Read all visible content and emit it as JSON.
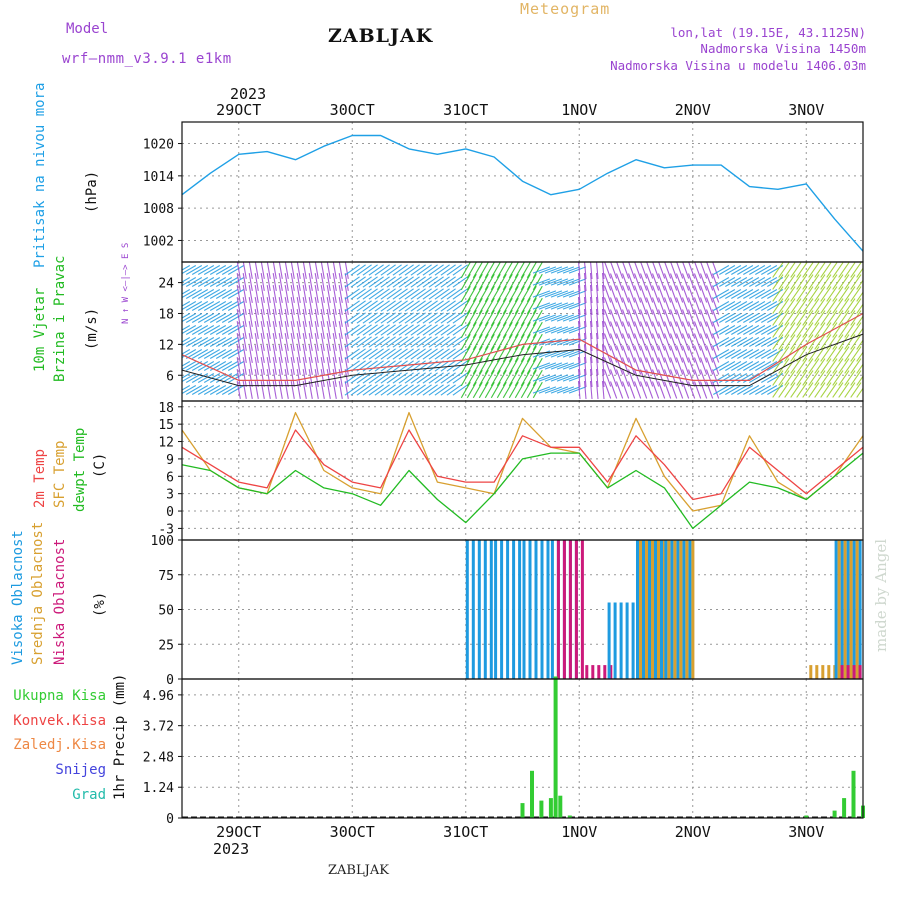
{
  "header": {
    "model_label": "Model",
    "model_name": "wrf—nmm_v3.9.1  e1km",
    "station": "ZABLJAK",
    "product": "Meteogram",
    "coords": "lon,lat (19.15E, 43.1125N)",
    "altitude": "Nadmorska Visina 1450m",
    "model_altitude": "Nadmorska Visina u modelu 1406.03m",
    "year": "2023",
    "credit": "made by Angel",
    "footer_station": "ZABLJAK"
  },
  "colors": {
    "pressure": "#1fa0e6",
    "temp2m": "#ee4444",
    "sfc": "#d8a030",
    "dewpt": "#22bb22",
    "high_cloud": "#1e9be0",
    "mid_cloud": "#d8a030",
    "low_cloud": "#cc1a7a",
    "total_precip": "#33cc33",
    "purple": "#9a44d0"
  },
  "time_axis": {
    "labels": [
      "29OCT",
      "30OCT",
      "31OCT",
      "1NOV",
      "2NOV",
      "3NOV"
    ],
    "start": "2023-10-28T12:00",
    "end": "2023-11-03T12:00"
  },
  "panels": {
    "pressure": {
      "label": "Pritisak na nivou mora",
      "unit": "(hPa)",
      "ticks": [
        "1020",
        "1014",
        "1008",
        "1002"
      ]
    },
    "wind": {
      "label1": "10m Vjetar",
      "label2": "Brzina i Pravac",
      "unit": "(m/s)",
      "ticks": [
        "24",
        "18",
        "12",
        "6"
      ],
      "compass": "N ↑  W <—|—> E  S"
    },
    "temp": {
      "label_temp": "2m Temp",
      "label_sfc": "SFC Temp",
      "label_dew": "dewpt Temp",
      "unit": "(C)",
      "ticks": [
        "18",
        "15",
        "12",
        "9",
        "6",
        "3",
        "0",
        "-3"
      ]
    },
    "cloud": {
      "label_high": "Visoka Oblacnost",
      "label_mid": "Srednja Oblacnost",
      "label_low": "Niska Oblacnost",
      "unit": "(%)",
      "ticks": [
        "100",
        "75",
        "50",
        "25",
        "0"
      ]
    },
    "precip": {
      "legend": [
        "Ukupna Kisa",
        "Konvek.Kisa",
        "Zaledj.Kisa",
        "Snijeg",
        "Grad"
      ],
      "unit_label": "1hr Precip (mm)",
      "ticks": [
        "4.96",
        "3.72",
        "2.48",
        "1.24",
        "0"
      ]
    }
  },
  "chart_data": [
    {
      "type": "line",
      "title": "",
      "ylabel": "Pritisak na nivou mora (hPa)",
      "ylim": [
        998,
        1024
      ],
      "x": [
        "2023-10-28T12:00",
        "2023-10-28T18:00",
        "2023-10-29T00:00",
        "2023-10-29T06:00",
        "2023-10-29T12:00",
        "2023-10-29T18:00",
        "2023-10-30T00:00",
        "2023-10-30T06:00",
        "2023-10-30T12:00",
        "2023-10-30T18:00",
        "2023-10-31T00:00",
        "2023-10-31T06:00",
        "2023-10-31T12:00",
        "2023-10-31T18:00",
        "2023-11-01T00:00",
        "2023-11-01T06:00",
        "2023-11-01T12:00",
        "2023-11-01T18:00",
        "2023-11-02T00:00",
        "2023-11-02T06:00",
        "2023-11-02T12:00",
        "2023-11-02T18:00",
        "2023-11-03T00:00",
        "2023-11-03T06:00",
        "2023-11-03T12:00"
      ],
      "series": [
        {
          "name": "Pritisak",
          "values": [
            1010.5,
            1014.5,
            1018.0,
            1018.5,
            1017.0,
            1019.5,
            1021.5,
            1021.5,
            1019.0,
            1018.0,
            1019.0,
            1017.5,
            1013.0,
            1010.5,
            1011.5,
            1014.5,
            1017.0,
            1015.5,
            1016.0,
            1016.0,
            1012.0,
            1011.5,
            1012.5,
            1006.0,
            1000.0
          ]
        }
      ]
    },
    {
      "type": "line",
      "title": "",
      "ylabel": "10m Vjetar Brzina i Pravac (m/s)",
      "ylim": [
        1,
        28
      ],
      "x": [
        "2023-10-28T12:00",
        "2023-10-29T00:00",
        "2023-10-29T12:00",
        "2023-10-30T00:00",
        "2023-10-30T12:00",
        "2023-10-31T00:00",
        "2023-10-31T12:00",
        "2023-11-01T00:00",
        "2023-11-01T12:00",
        "2023-11-02T00:00",
        "2023-11-02T12:00",
        "2023-11-03T00:00",
        "2023-11-03T12:00"
      ],
      "series": [
        {
          "name": "Brzina",
          "values": [
            7,
            4,
            4,
            6,
            7,
            8,
            10,
            11,
            6,
            4,
            4,
            10,
            14
          ]
        },
        {
          "name": "Udari",
          "values": [
            10,
            5,
            5,
            7,
            8,
            9,
            12,
            13,
            7,
            5,
            5,
            12,
            18
          ]
        }
      ]
    },
    {
      "type": "line",
      "title": "",
      "ylabel": "(C)",
      "ylim": [
        -5,
        19
      ],
      "x": [
        "2023-10-28T12:00",
        "2023-10-28T18:00",
        "2023-10-29T00:00",
        "2023-10-29T06:00",
        "2023-10-29T12:00",
        "2023-10-29T18:00",
        "2023-10-30T00:00",
        "2023-10-30T06:00",
        "2023-10-30T12:00",
        "2023-10-30T18:00",
        "2023-10-31T00:00",
        "2023-10-31T06:00",
        "2023-10-31T12:00",
        "2023-10-31T18:00",
        "2023-11-01T00:00",
        "2023-11-01T06:00",
        "2023-11-01T12:00",
        "2023-11-01T18:00",
        "2023-11-02T00:00",
        "2023-11-02T06:00",
        "2023-11-02T12:00",
        "2023-11-02T18:00",
        "2023-11-03T00:00",
        "2023-11-03T06:00",
        "2023-11-03T12:00"
      ],
      "series": [
        {
          "name": "2m Temp",
          "values": [
            11,
            8,
            5,
            4,
            14,
            8,
            5,
            4,
            14,
            6,
            5,
            5,
            13,
            11,
            11,
            5,
            13,
            8,
            2,
            3,
            11,
            7,
            3,
            7,
            11
          ]
        },
        {
          "name": "SFC Temp",
          "values": [
            14,
            7,
            4,
            3,
            17,
            7,
            4,
            3,
            17,
            5,
            4,
            3,
            16,
            11,
            10,
            4,
            16,
            6,
            0,
            1,
            13,
            5,
            2,
            6,
            13
          ]
        },
        {
          "name": "dewpt Temp",
          "values": [
            8,
            7,
            4,
            3,
            7,
            4,
            3,
            1,
            7,
            2,
            -2,
            3,
            9,
            10,
            10,
            4,
            7,
            4,
            -3,
            1,
            5,
            4,
            2,
            6,
            10
          ]
        }
      ]
    },
    {
      "type": "bar",
      "title": "",
      "ylabel": "(%)",
      "ylim": [
        0,
        100
      ],
      "categories": [
        "2023-10-31T00:00",
        "2023-10-31T06:00",
        "2023-10-31T12:00",
        "2023-10-31T18:00",
        "2023-11-01T00:00",
        "2023-11-01T06:00",
        "2023-11-01T12:00",
        "2023-11-01T18:00",
        "2023-11-02T00:00",
        "2023-11-03T00:00",
        "2023-11-03T06:00",
        "2023-11-03T12:00"
      ],
      "series": [
        {
          "name": "Visoka Oblacnost",
          "values": [
            100,
            100,
            100,
            100,
            0,
            55,
            100,
            100,
            0,
            0,
            100,
            80
          ]
        },
        {
          "name": "Srednja Oblacnost",
          "values": [
            0,
            0,
            0,
            0,
            0,
            0,
            100,
            100,
            0,
            10,
            100,
            60
          ]
        },
        {
          "name": "Niska Oblacnost",
          "values": [
            0,
            0,
            0,
            100,
            10,
            0,
            0,
            0,
            0,
            0,
            10,
            0
          ]
        }
      ]
    },
    {
      "type": "bar",
      "title": "",
      "ylabel": "1hr Precip (mm)",
      "ylim": [
        0,
        5.6
      ],
      "categories": [
        "2023-10-31T12:00",
        "2023-10-31T14:00",
        "2023-10-31T16:00",
        "2023-10-31T18:00",
        "2023-10-31T19:00",
        "2023-10-31T20:00",
        "2023-10-31T22:00",
        "2023-11-03T00:00",
        "2023-11-03T06:00",
        "2023-11-03T08:00",
        "2023-11-03T10:00",
        "2023-11-03T12:00"
      ],
      "series": [
        {
          "name": "Ukupna Kisa",
          "values": [
            0.6,
            1.9,
            0.7,
            0.8,
            5.7,
            0.9,
            0.1,
            0.1,
            0.3,
            0.8,
            1.9,
            0.5
          ]
        }
      ]
    }
  ]
}
